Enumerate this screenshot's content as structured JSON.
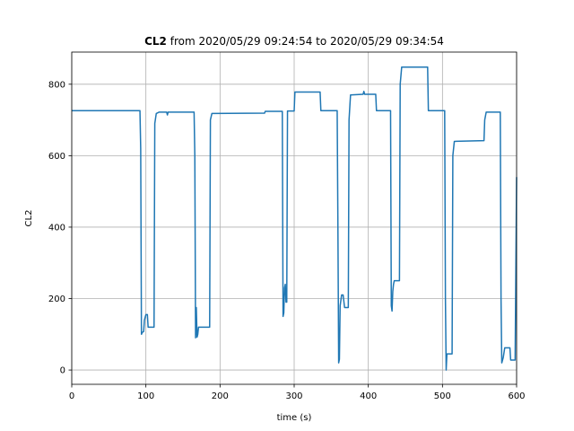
{
  "chart_data": {
    "type": "line",
    "title_bold": "CL2",
    "title_rest": " from 2020/05/29 09:24:54 to 2020/05/29 09:34:54",
    "xlabel": "time (s)",
    "ylabel": "CL2",
    "xlim": [
      0,
      600
    ],
    "ylim": [
      -40,
      890
    ],
    "xticks": [
      0,
      100,
      200,
      300,
      400,
      500,
      600
    ],
    "yticks": [
      0,
      200,
      400,
      600,
      800
    ],
    "grid": true,
    "series": [
      {
        "color": "#1f77b4",
        "points": [
          [
            0,
            726
          ],
          [
            92,
            726
          ],
          [
            93,
            620
          ],
          [
            94,
            100
          ],
          [
            95,
            105
          ],
          [
            97,
            108
          ],
          [
            98,
            140
          ],
          [
            100,
            155
          ],
          [
            102,
            155
          ],
          [
            103,
            120
          ],
          [
            111,
            120
          ],
          [
            112,
            690
          ],
          [
            114,
            718
          ],
          [
            118,
            722
          ],
          [
            128,
            722
          ],
          [
            129,
            714
          ],
          [
            130,
            722
          ],
          [
            165,
            722
          ],
          [
            166,
            600
          ],
          [
            167,
            90
          ],
          [
            168,
            175
          ],
          [
            169,
            92
          ],
          [
            170,
            100
          ],
          [
            171,
            120
          ],
          [
            186,
            120
          ],
          [
            187,
            700
          ],
          [
            189,
            718
          ],
          [
            260,
            719
          ],
          [
            261,
            724
          ],
          [
            284,
            724
          ],
          [
            285,
            150
          ],
          [
            286,
            160
          ],
          [
            287,
            230
          ],
          [
            288,
            240
          ],
          [
            289,
            190
          ],
          [
            290,
            190
          ],
          [
            291,
            725
          ],
          [
            300,
            725
          ],
          [
            301,
            778
          ],
          [
            335,
            778
          ],
          [
            336,
            726
          ],
          [
            358,
            726
          ],
          [
            359,
            400
          ],
          [
            360,
            20
          ],
          [
            361,
            30
          ],
          [
            362,
            180
          ],
          [
            364,
            210
          ],
          [
            366,
            210
          ],
          [
            368,
            175
          ],
          [
            373,
            175
          ],
          [
            374,
            700
          ],
          [
            376,
            770
          ],
          [
            393,
            772
          ],
          [
            394,
            780
          ],
          [
            395,
            772
          ],
          [
            410,
            772
          ],
          [
            411,
            726
          ],
          [
            430,
            726
          ],
          [
            431,
            180
          ],
          [
            432,
            165
          ],
          [
            433,
            220
          ],
          [
            434,
            240
          ],
          [
            435,
            250
          ],
          [
            442,
            250
          ],
          [
            443,
            800
          ],
          [
            445,
            848
          ],
          [
            480,
            848
          ],
          [
            481,
            726
          ],
          [
            503,
            726
          ],
          [
            504,
            200
          ],
          [
            505,
            0
          ],
          [
            506,
            45
          ],
          [
            513,
            45
          ],
          [
            514,
            600
          ],
          [
            516,
            640
          ],
          [
            556,
            642
          ],
          [
            557,
            700
          ],
          [
            559,
            722
          ],
          [
            578,
            722
          ],
          [
            579,
            200
          ],
          [
            580,
            20
          ],
          [
            582,
            35
          ],
          [
            584,
            62
          ],
          [
            591,
            62
          ],
          [
            592,
            28
          ],
          [
            598,
            28
          ],
          [
            599,
            280
          ],
          [
            600,
            540
          ]
        ]
      }
    ]
  }
}
